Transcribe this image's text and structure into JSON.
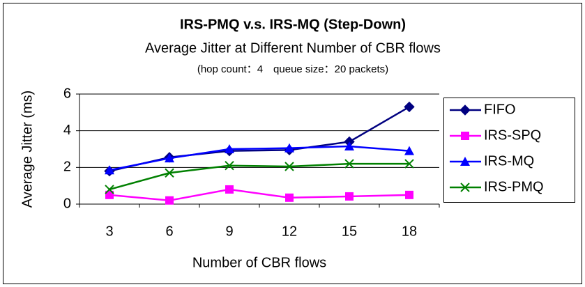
{
  "chart_data": {
    "type": "line",
    "title": "IRS-PMQ v.s. IRS-MQ (Step-Down)",
    "subtitle": "Average Jitter at Different Number of CBR flows",
    "annotation": "(hop count：4　queue size：20 packets)",
    "x_label": "Number of CBR flows",
    "y_label": "Average Jitter (ms)",
    "categories": [
      "3",
      "6",
      "9",
      "12",
      "15",
      "18"
    ],
    "series": [
      {
        "name": "FIFO",
        "color": "#000080",
        "marker": "diamond",
        "values": [
          1.8,
          2.55,
          2.9,
          2.95,
          3.4,
          5.3
        ]
      },
      {
        "name": "IRS-SPQ",
        "color": "#ff00ff",
        "marker": "square",
        "values": [
          0.5,
          0.2,
          0.8,
          0.35,
          0.42,
          0.5
        ]
      },
      {
        "name": "IRS-MQ",
        "color": "#0000ff",
        "marker": "triangle",
        "values": [
          1.85,
          2.5,
          3.0,
          3.05,
          3.15,
          2.9
        ]
      },
      {
        "name": "IRS-PMQ",
        "color": "#008000",
        "marker": "x",
        "values": [
          0.8,
          1.7,
          2.1,
          2.05,
          2.2,
          2.2
        ]
      }
    ],
    "ylim": [
      0,
      6
    ],
    "yticks": [
      0,
      2,
      4,
      6
    ],
    "grid": true,
    "legend": "right"
  }
}
